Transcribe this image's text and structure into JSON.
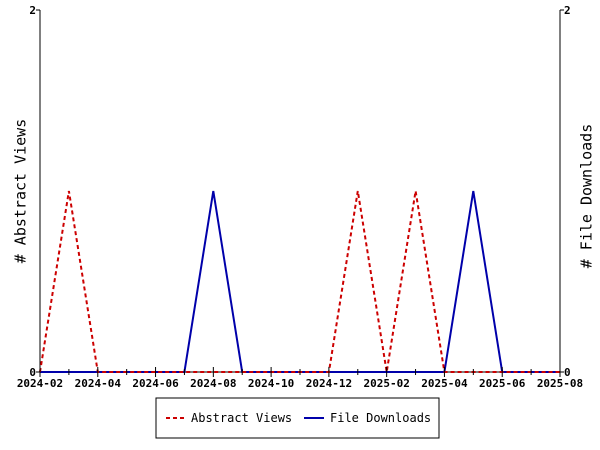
{
  "chart_data": {
    "type": "line",
    "x": [
      "2024-02",
      "2024-03",
      "2024-04",
      "2024-05",
      "2024-06",
      "2024-07",
      "2024-08",
      "2024-09",
      "2024-10",
      "2024-11",
      "2024-12",
      "2025-01",
      "2025-02",
      "2025-03",
      "2025-04",
      "2025-05",
      "2025-06",
      "2025-07",
      "2025-08"
    ],
    "x_tick_labels": [
      "2024-02",
      "2024-04",
      "2024-06",
      "2024-08",
      "2024-10",
      "2024-12",
      "2025-02",
      "2025-04",
      "2025-06",
      "2025-08"
    ],
    "y_left_label": "# Abstract Views",
    "y_right_label": "# File Downloads",
    "y_left_ticks": [
      "0",
      "2"
    ],
    "y_right_ticks": [
      "0",
      "2"
    ],
    "ylim": [
      0,
      2
    ],
    "grid": false,
    "legend_placement": "bottom-center",
    "series": [
      {
        "name": "Abstract Views",
        "axis": "left",
        "color": "#cc0000",
        "dash": "dashed",
        "values": [
          0,
          1,
          0,
          0,
          0,
          0,
          0,
          0,
          0,
          0,
          0,
          1,
          0,
          1,
          0,
          0,
          0,
          0,
          0
        ]
      },
      {
        "name": "File Downloads",
        "axis": "right",
        "color": "#0000aa",
        "dash": "solid",
        "values": [
          0,
          0,
          0,
          0,
          0,
          0,
          1,
          0,
          0,
          0,
          0,
          0,
          0,
          0,
          0,
          1,
          0,
          0,
          0
        ]
      }
    ]
  }
}
